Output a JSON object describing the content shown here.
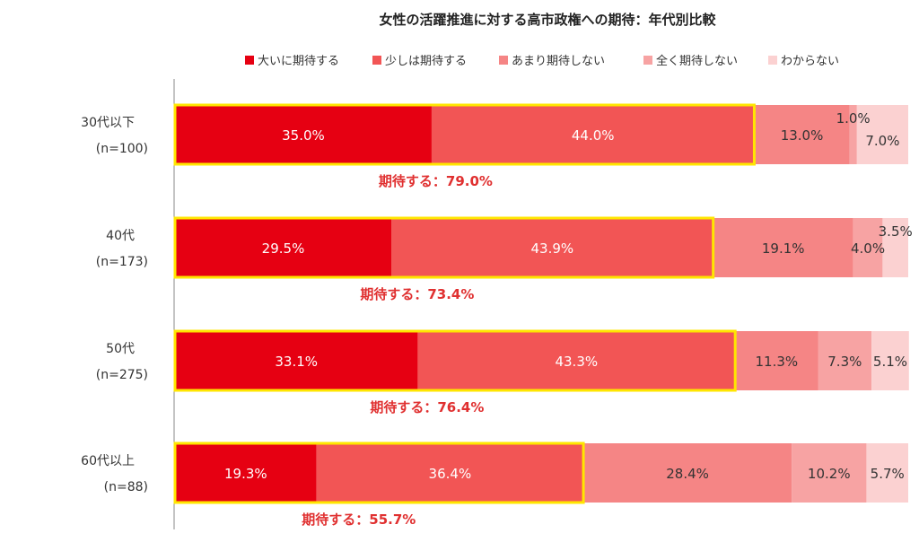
{
  "chart_data": {
    "type": "stacked-bar-horizontal",
    "title": "女性の活躍推進に対する高市政権への期待：年代別比較",
    "categories": [
      "30代以下",
      "40代",
      "50代",
      "60代以上"
    ],
    "sample_sizes": [
      "(n=100)",
      "(n=173)",
      "(n=275)",
      "(n=88)"
    ],
    "xlim": [
      0,
      100
    ],
    "series": [
      {
        "name": "大いに期待する",
        "color": "#e60012",
        "values": [
          35.0,
          29.5,
          33.1,
          19.3
        ],
        "labels": [
          "35.0%",
          "29.5%",
          "33.1%",
          "19.3%"
        ]
      },
      {
        "name": "少しは期待する",
        "color": "#f25555",
        "values": [
          44.0,
          43.9,
          43.3,
          36.4
        ],
        "labels": [
          "44.0%",
          "43.9%",
          "43.3%",
          "36.4%"
        ]
      },
      {
        "name": "あまり期待しない",
        "color": "#f58585",
        "values": [
          13.0,
          19.1,
          11.3,
          28.4
        ],
        "labels": [
          "13.0%",
          "19.1%",
          "11.3%",
          "28.4%"
        ]
      },
      {
        "name": "全く期待しない",
        "color": "#f7a3a3",
        "values": [
          1.0,
          4.0,
          7.3,
          10.2
        ],
        "labels": [
          "1.0%",
          "4.0%",
          "7.3%",
          "10.2%"
        ]
      },
      {
        "name": "わからない",
        "color": "#fbd1d1",
        "values": [
          7.0,
          3.5,
          5.1,
          5.7
        ],
        "labels": [
          "7.0%",
          "3.5%",
          "5.1%",
          "5.7%"
        ]
      }
    ],
    "highlight": {
      "series_count": 2,
      "border_color": "#ffe600",
      "label_color": "#e03030",
      "labels": [
        "期待する：79.0%",
        "期待する：73.4%",
        "期待する：76.4%",
        "期待する：55.7%"
      ]
    },
    "legend_position": "top",
    "grid": false
  }
}
